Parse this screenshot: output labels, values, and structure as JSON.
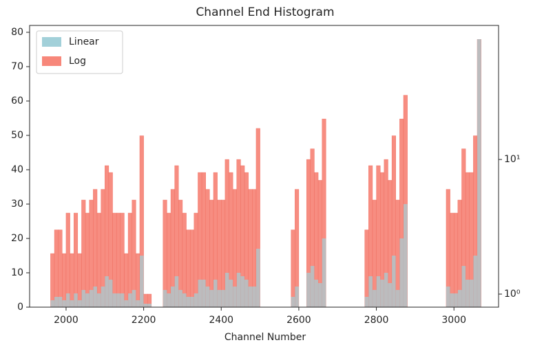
{
  "chart_data": {
    "type": "histogram",
    "title": "Channel End Histogram",
    "x_label": "Channel Number",
    "bins": [
      1960,
      1970,
      1980,
      1990,
      2000,
      2010,
      2020,
      2030,
      2040,
      2050,
      2060,
      2070,
      2080,
      2090,
      2100,
      2110,
      2120,
      2130,
      2140,
      2150,
      2160,
      2170,
      2180,
      2190,
      2200,
      2210,
      2220,
      2230,
      2240,
      2250,
      2260,
      2270,
      2280,
      2290,
      2300,
      2310,
      2320,
      2330,
      2340,
      2350,
      2360,
      2370,
      2380,
      2390,
      2400,
      2410,
      2420,
      2430,
      2440,
      2450,
      2460,
      2470,
      2480,
      2490,
      2500,
      2510,
      2520,
      2530,
      2540,
      2550,
      2560,
      2570,
      2580,
      2590,
      2600,
      2610,
      2620,
      2630,
      2640,
      2650,
      2660,
      2670,
      2680,
      2690,
      2700,
      2710,
      2720,
      2730,
      2740,
      2750,
      2760,
      2770,
      2780,
      2790,
      2800,
      2810,
      2820,
      2830,
      2840,
      2850,
      2860,
      2870,
      2880,
      2890,
      2900,
      2910,
      2920,
      2930,
      2940,
      2950,
      2960,
      2970,
      2980,
      2990,
      3000,
      3010,
      3020,
      3030,
      3040,
      3050,
      3060,
      3070
    ],
    "series": [
      {
        "name": "Log",
        "color": "#f7877a",
        "axis": "y2",
        "values": [
          2,
          3,
          3,
          2,
          4,
          2,
          4,
          2,
          5,
          4,
          5,
          6,
          4,
          6,
          9,
          8,
          4,
          4,
          4,
          2,
          4,
          5,
          2,
          15,
          1,
          1,
          0,
          0,
          0,
          5,
          4,
          6,
          9,
          5,
          4,
          3,
          3,
          4,
          8,
          8,
          6,
          5,
          8,
          5,
          5,
          10,
          8,
          6,
          10,
          9,
          8,
          6,
          6,
          17,
          0,
          0,
          0,
          0,
          0,
          0,
          0,
          0,
          3,
          6,
          0,
          0,
          10,
          12,
          8,
          7,
          20,
          0,
          0,
          0,
          0,
          0,
          0,
          0,
          0,
          0,
          0,
          3,
          9,
          5,
          9,
          8,
          10,
          7,
          15,
          5,
          20,
          30,
          0,
          0,
          0,
          0,
          0,
          0,
          0,
          0,
          0,
          0,
          6,
          4,
          4,
          5,
          12,
          8,
          8,
          15,
          78
        ]
      },
      {
        "name": "Linear",
        "color": "#a2d0d9",
        "values": [
          2,
          3,
          3,
          2,
          4,
          2,
          4,
          2,
          5,
          4,
          5,
          6,
          4,
          6,
          9,
          8,
          4,
          4,
          4,
          2,
          4,
          5,
          2,
          15,
          1,
          1,
          0,
          0,
          0,
          5,
          4,
          6,
          9,
          5,
          4,
          3,
          3,
          4,
          8,
          8,
          6,
          5,
          8,
          5,
          5,
          10,
          8,
          6,
          10,
          9,
          8,
          6,
          6,
          17,
          0,
          0,
          0,
          0,
          0,
          0,
          0,
          0,
          3,
          6,
          0,
          0,
          10,
          12,
          8,
          7,
          20,
          0,
          0,
          0,
          0,
          0,
          0,
          0,
          0,
          0,
          0,
          3,
          9,
          5,
          9,
          8,
          10,
          7,
          15,
          5,
          20,
          30,
          0,
          0,
          0,
          0,
          0,
          0,
          0,
          0,
          0,
          0,
          6,
          4,
          4,
          5,
          12,
          8,
          8,
          15,
          78
        ]
      }
    ],
    "xlim": [
      1906,
      3115
    ],
    "xticks": [
      2000,
      2200,
      2400,
      2600,
      2800,
      3000
    ],
    "ylim": [
      0,
      82
    ],
    "yticks": [
      0,
      10,
      20,
      30,
      40,
      50,
      60,
      70,
      80
    ],
    "y2lim": [
      0.8,
      99
    ],
    "y2log": true,
    "y2ticks": [
      {
        "value": 1,
        "label": "10⁰"
      },
      {
        "value": 10,
        "label": "10¹"
      }
    ],
    "legend": "upper left"
  }
}
